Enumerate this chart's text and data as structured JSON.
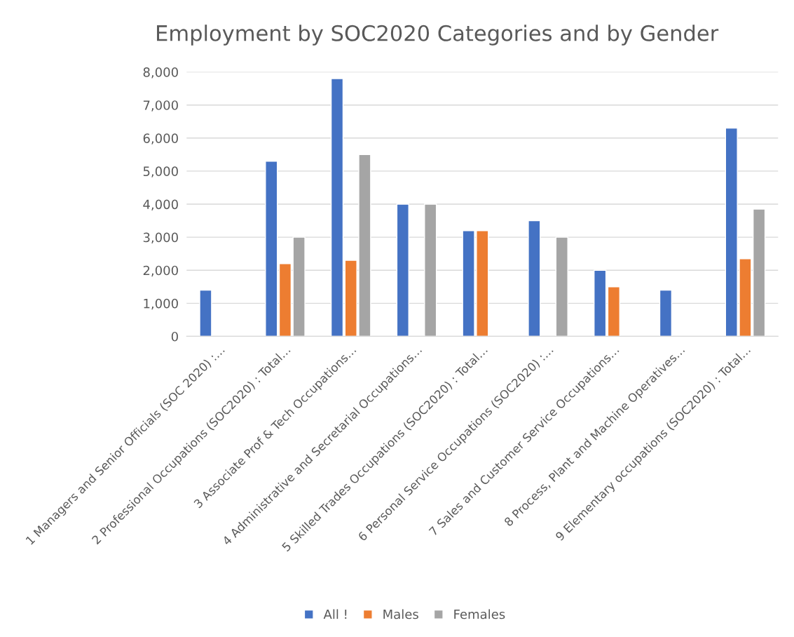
{
  "chart_data": {
    "type": "bar",
    "title": "Employment by SOC2020 Categories and by Gender",
    "categories": [
      "1 Managers and Senior Officials (SOC 2020) :…",
      "2 Professional Occupations (SOC2020) : Total…",
      "3 Associate Prof & Tech Occupations…",
      "4 Administrative and Secretarial Occupations…",
      "5 Skilled Trades Occupations (SOC2020) : Total…",
      "6 Personal Service Occupations (SOC2020) :…",
      "7 Sales and Customer Service Occupations…",
      "8 Process, Plant and Machine Operatives…",
      "9 Elementary occupations (SOC2020) : Total…"
    ],
    "series": [
      {
        "name": "All !",
        "color": "#4472c4",
        "values": [
          1400,
          5300,
          7800,
          4000,
          3200,
          3500,
          2000,
          1400,
          6300
        ]
      },
      {
        "name": "Males",
        "color": "#ed7d31",
        "values": [
          null,
          2200,
          2300,
          null,
          3200,
          null,
          1500,
          null,
          2350
        ]
      },
      {
        "name": "Females",
        "color": "#a5a5a5",
        "values": [
          null,
          3000,
          5500,
          4000,
          null,
          3000,
          null,
          null,
          3850
        ]
      }
    ],
    "ylim": [
      0,
      8000
    ],
    "yticks": [
      {
        "value": 0,
        "label": "0"
      },
      {
        "value": 1000,
        "label": "1,000"
      },
      {
        "value": 2000,
        "label": "2,000"
      },
      {
        "value": 3000,
        "label": "3,000"
      },
      {
        "value": 4000,
        "label": "4,000"
      },
      {
        "value": 5000,
        "label": "5,000"
      },
      {
        "value": 6000,
        "label": "6,000"
      },
      {
        "value": 7000,
        "label": "7,000"
      },
      {
        "value": 8000,
        "label": "8,000"
      }
    ],
    "grid": "y",
    "legend": "bottom"
  }
}
